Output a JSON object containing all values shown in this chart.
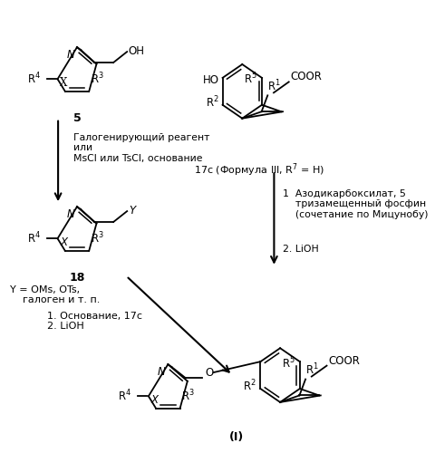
{
  "background_color": "#ffffff",
  "figsize": [
    4.81,
    5.0
  ],
  "dpi": 100,
  "texts": {
    "label5": "5",
    "label18": "18",
    "label17c": "17c (Формула III, R$^7$ = H)",
    "labelI": "(I)",
    "arrow1_text": "Галогенирующий реагент\nили\nMsCl или TsCl, основание",
    "arrow2_text1": "1  Азодикарбоксилат, 5",
    "arrow2_text2": "    тризамещенный фосфин",
    "arrow2_text3": "    (сочетание по Мицунобу)",
    "arrow2_text4": "2. LiOH",
    "arrow3_text": "1. Основание, 17c\n2. LiOH",
    "ylabel": "Y = OMs, OTs,\n    галоген и т. п."
  }
}
